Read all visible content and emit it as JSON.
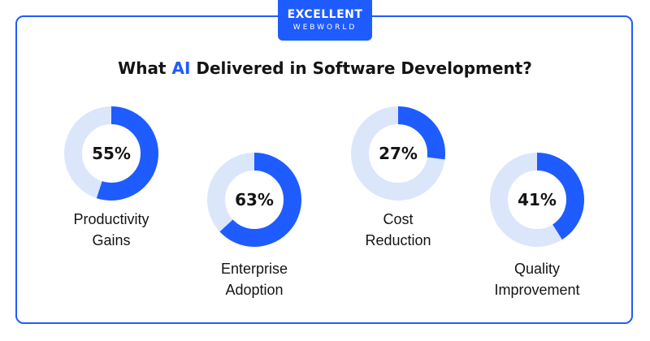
{
  "brand": {
    "line1": "EXCELLENT",
    "line2": "WEBWORLD",
    "color": "#1f5cff"
  },
  "title": {
    "before": "What ",
    "highlight": "AI",
    "after": " Delivered in Software Development?"
  },
  "colors": {
    "ring_fill": "#1f5cff",
    "ring_track": "#dce6fb"
  },
  "chart_data": {
    "type": "pie",
    "title": "What AI Delivered in Software Development?",
    "unit": "%",
    "categories": [
      "Productivity Gains",
      "Enterprise Adoption",
      "Cost Reduction",
      "Quality Improvement"
    ],
    "values": [
      55,
      63,
      27,
      41
    ],
    "items": [
      {
        "value": 55,
        "display": "55%",
        "label_lines": [
          "Productivity",
          "Gains"
        ]
      },
      {
        "value": 63,
        "display": "63%",
        "label_lines": [
          "Enterprise",
          "Adoption"
        ]
      },
      {
        "value": 27,
        "display": "27%",
        "label_lines": [
          "Cost",
          "Reduction"
        ]
      },
      {
        "value": 41,
        "display": "41%",
        "label_lines": [
          "Quality",
          "Improvement"
        ]
      }
    ]
  }
}
